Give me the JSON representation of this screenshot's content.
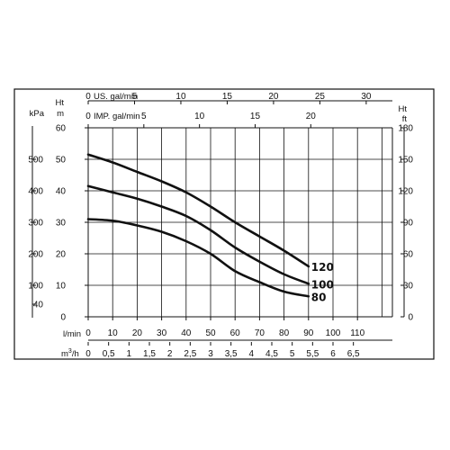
{
  "chart_data": {
    "type": "line",
    "title": "",
    "x_axes": {
      "flow_lmin": {
        "unit_label": "l/min",
        "range": [
          0,
          120
        ],
        "ticks": [
          "0",
          "10",
          "20",
          "30",
          "40",
          "50",
          "60",
          "70",
          "80",
          "90",
          "100",
          "110"
        ]
      },
      "flow_m3h": {
        "unit_label_main": "m",
        "unit_label_sup": "3",
        "unit_label_tail": "/h",
        "range": [
          0,
          7.2
        ],
        "ticks": [
          "0",
          "0,5",
          "1",
          "1,5",
          "2",
          "2,5",
          "3",
          "3,5",
          "4",
          "4,5",
          "5",
          "5,5",
          "6",
          "6,5"
        ]
      },
      "flow_usgal": {
        "unit_label": "US. gal/min",
        "range": [
          0,
          31.7
        ],
        "ticks": [
          "0",
          "5",
          "10",
          "15",
          "20",
          "25",
          "30"
        ]
      },
      "flow_impgal": {
        "unit_label": "IMP. gal/min",
        "range": [
          0,
          26.4
        ],
        "ticks": [
          "0",
          "5",
          "10",
          "15",
          "20"
        ]
      }
    },
    "y_axes": {
      "head_m": {
        "unit_label_top": "Ht",
        "unit_label": "m",
        "range": [
          0,
          60
        ],
        "ticks": [
          "0",
          "10",
          "20",
          "30",
          "40",
          "50",
          "60"
        ]
      },
      "pressure_kpa": {
        "unit_label": "kPa",
        "range": [
          0,
          600
        ],
        "ticks": [
          "40",
          "100",
          "200",
          "300",
          "400",
          "500"
        ]
      },
      "head_ft": {
        "unit_label_top": "Ht",
        "unit_label": "ft",
        "range": [
          0,
          180
        ],
        "ticks": [
          "0",
          "30",
          "60",
          "90",
          "120",
          "150",
          "180"
        ]
      }
    },
    "grid": true,
    "series": [
      {
        "name": "120",
        "x": [
          0,
          10,
          20,
          30,
          40,
          50,
          60,
          70,
          80,
          90
        ],
        "y": [
          51.5,
          49,
          46,
          43,
          39.5,
          35,
          30,
          25.5,
          21,
          16
        ]
      },
      {
        "name": "100",
        "x": [
          0,
          10,
          20,
          30,
          40,
          50,
          60,
          70,
          80,
          90
        ],
        "y": [
          41.5,
          39.5,
          37.5,
          35,
          32,
          27.5,
          22,
          17.5,
          13.5,
          10.5
        ]
      },
      {
        "name": "80",
        "x": [
          0,
          10,
          20,
          30,
          40,
          50,
          60,
          70,
          80,
          90
        ],
        "y": [
          31,
          30.5,
          29,
          27,
          24,
          20,
          14.5,
          11,
          8,
          6.5
        ]
      }
    ]
  }
}
